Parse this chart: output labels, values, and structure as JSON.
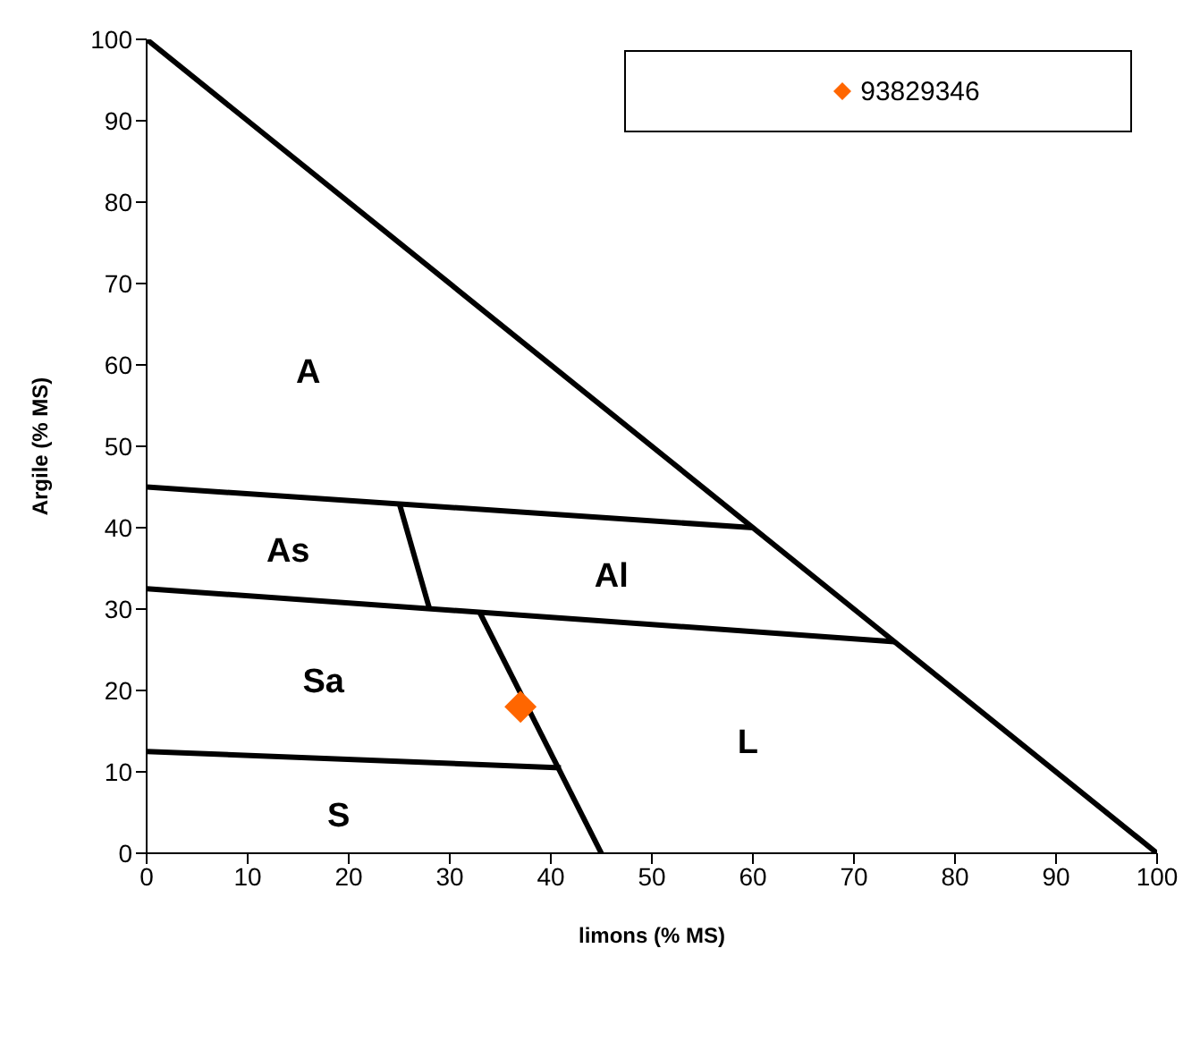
{
  "chart_data": {
    "type": "line",
    "xlabel": "limons  (% MS)",
    "ylabel": "Argile (% MS)",
    "xlim": [
      0,
      100
    ],
    "ylim": [
      0,
      100
    ],
    "xticks": [
      0,
      10,
      20,
      30,
      40,
      50,
      60,
      70,
      80,
      90,
      100
    ],
    "yticks": [
      0,
      10,
      20,
      30,
      40,
      50,
      60,
      70,
      80,
      90,
      100
    ],
    "legend": "top right",
    "line_style": "solid",
    "series": [
      {
        "color": "#000000",
        "x": [
          0,
          100
        ],
        "values": [
          100,
          0
        ]
      },
      {
        "color": "#000000",
        "x": [
          0,
          60
        ],
        "values": [
          45,
          40
        ]
      },
      {
        "color": "#000000",
        "x": [
          0,
          74
        ],
        "values": [
          32.5,
          26
        ]
      },
      {
        "color": "#000000",
        "x": [
          0,
          41
        ],
        "values": [
          12.5,
          10.5
        ]
      },
      {
        "color": "#000000",
        "x": [
          25,
          28
        ],
        "values": [
          43,
          30
        ]
      },
      {
        "color": "#000000",
        "x": [
          33,
          45
        ],
        "values": [
          29.5,
          0
        ]
      },
      {
        "type": "scatter",
        "name": "93829346",
        "color": "#ff6600",
        "marker": "diamond",
        "x": [
          37
        ],
        "values": [
          18
        ]
      }
    ],
    "annotations": [
      "A",
      "As",
      "Al",
      "Sa",
      "L",
      "S"
    ]
  }
}
